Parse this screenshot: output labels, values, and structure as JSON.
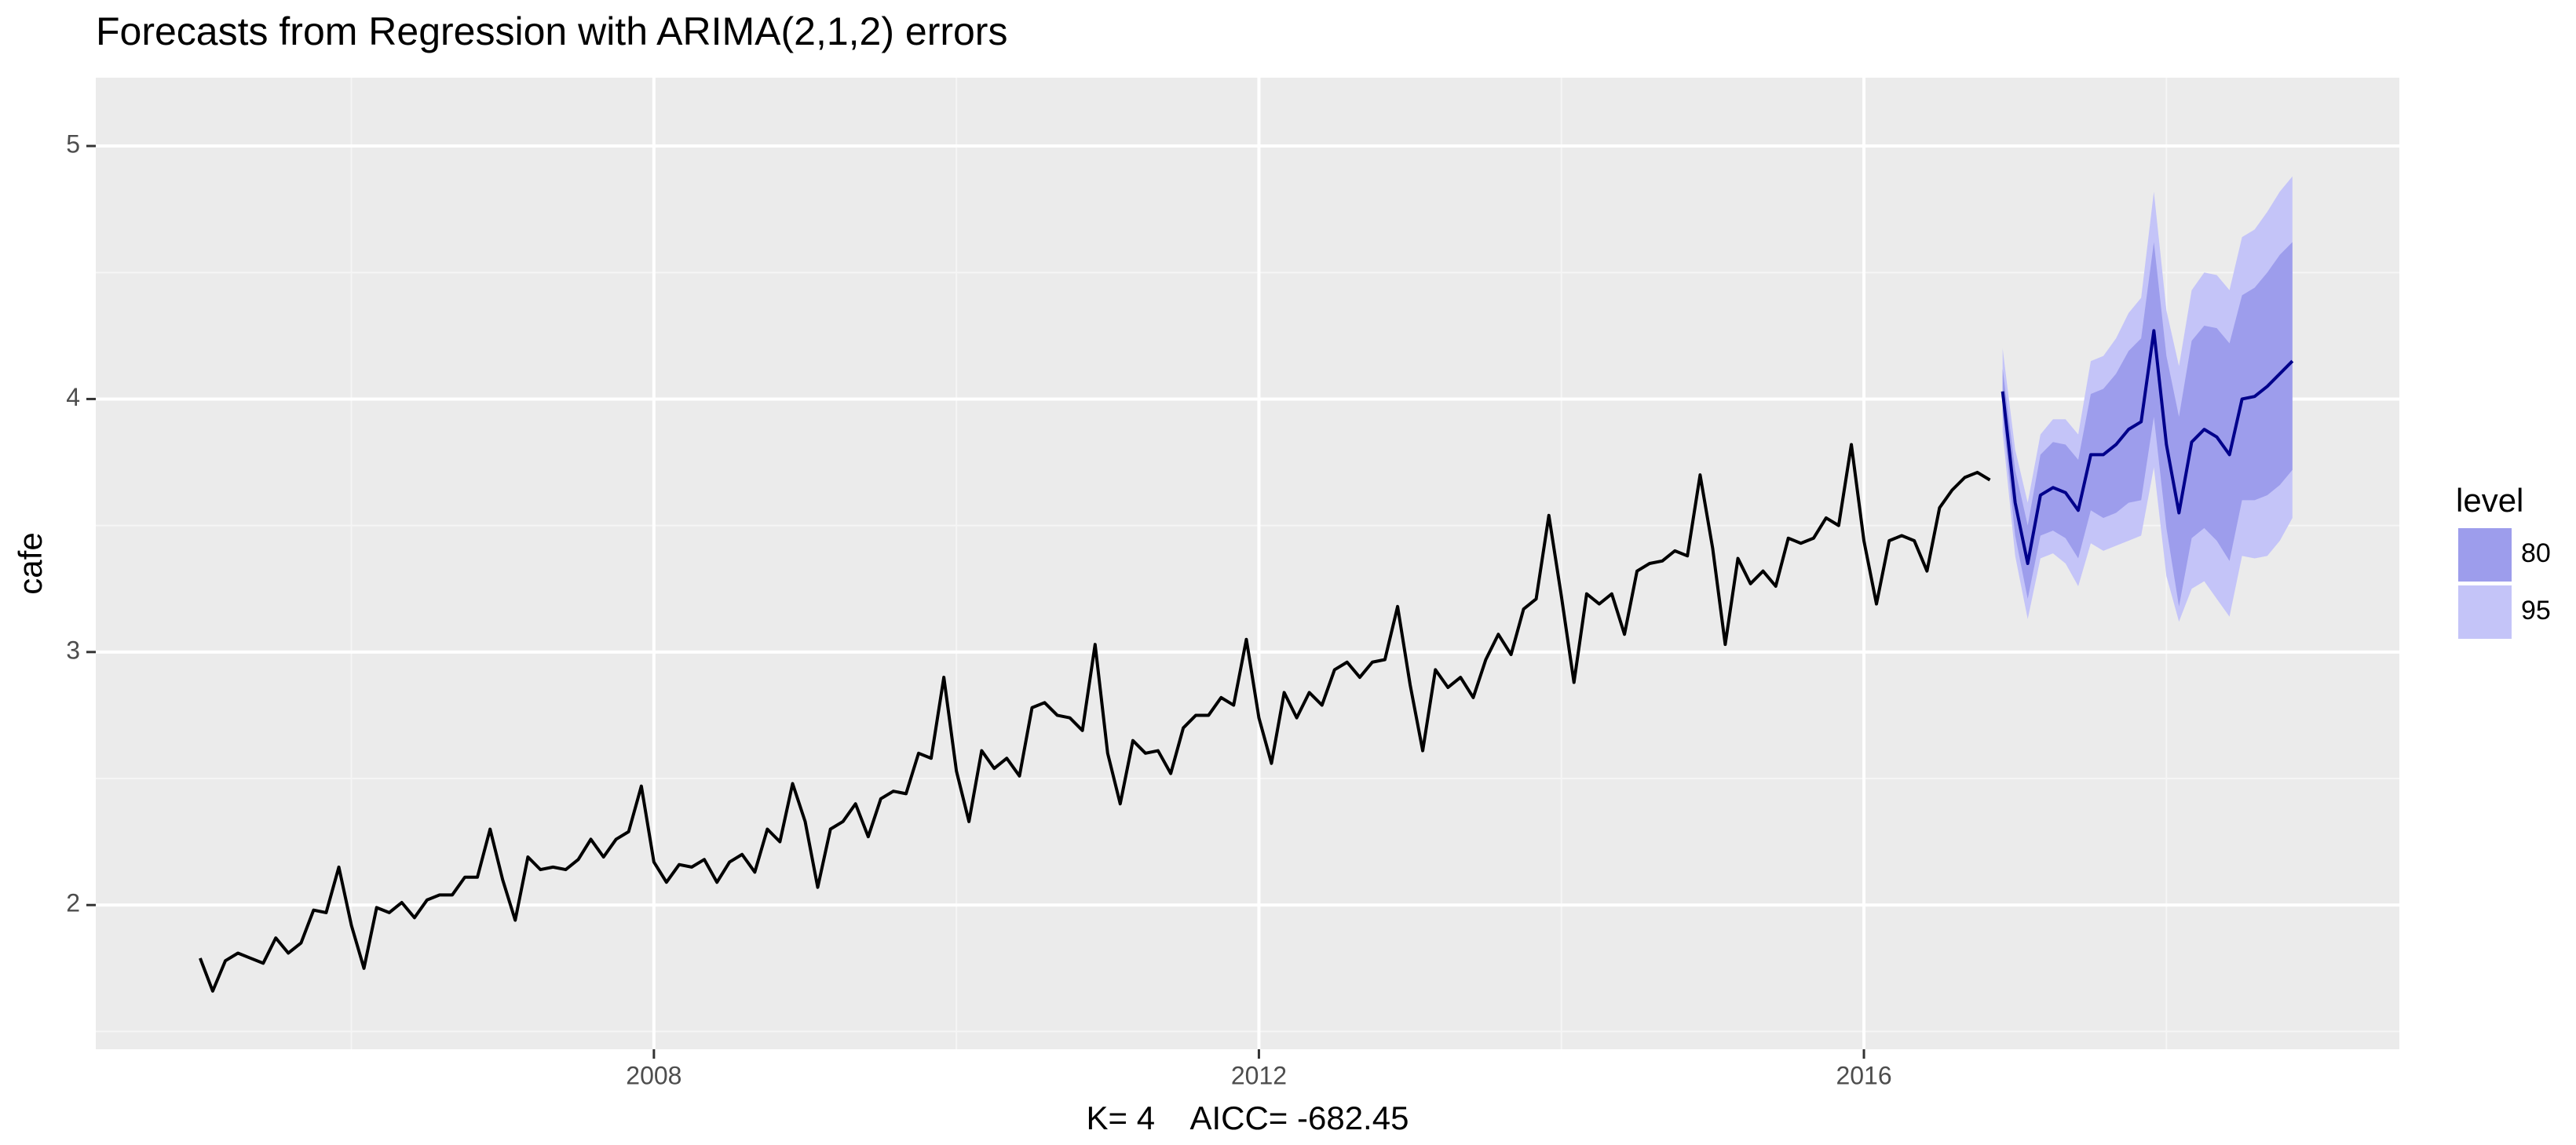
{
  "chart_data": {
    "type": "line",
    "title": "Forecasts from Regression with ARIMA(2,1,2) errors",
    "x_label": "K= 4    AICC= -682.45",
    "y_label": "cafe",
    "legend_title": "level",
    "grid": true,
    "xlim": [
      2004.31,
      2019.54
    ],
    "ylim": [
      1.43,
      5.27
    ],
    "xticks": [
      2008,
      2012,
      2016
    ],
    "yticks": [
      2,
      3,
      4,
      5
    ],
    "xminor": [
      2006,
      2010,
      2014,
      2018
    ],
    "yminor": [
      1.5,
      2.5,
      3.5,
      4.5
    ],
    "color": "#000000",
    "x": [
      2005,
      2005.083,
      2005.167,
      2005.25,
      2005.333,
      2005.417,
      2005.5,
      2005.583,
      2005.667,
      2005.75,
      2005.833,
      2005.917,
      2006,
      2006.083,
      2006.167,
      2006.25,
      2006.333,
      2006.417,
      2006.5,
      2006.583,
      2006.667,
      2006.75,
      2006.833,
      2006.917,
      2007,
      2007.083,
      2007.167,
      2007.25,
      2007.333,
      2007.417,
      2007.5,
      2007.583,
      2007.667,
      2007.75,
      2007.833,
      2007.917,
      2008,
      2008.083,
      2008.167,
      2008.25,
      2008.333,
      2008.417,
      2008.5,
      2008.583,
      2008.667,
      2008.75,
      2008.833,
      2008.917,
      2009,
      2009.083,
      2009.167,
      2009.25,
      2009.333,
      2009.417,
      2009.5,
      2009.583,
      2009.667,
      2009.75,
      2009.833,
      2009.917,
      2010,
      2010.083,
      2010.167,
      2010.25,
      2010.333,
      2010.417,
      2010.5,
      2010.583,
      2010.667,
      2010.75,
      2010.833,
      2010.917,
      2011,
      2011.083,
      2011.167,
      2011.25,
      2011.333,
      2011.417,
      2011.5,
      2011.583,
      2011.667,
      2011.75,
      2011.833,
      2011.917,
      2012,
      2012.083,
      2012.167,
      2012.25,
      2012.333,
      2012.417,
      2012.5,
      2012.583,
      2012.667,
      2012.75,
      2012.833,
      2012.917,
      2013,
      2013.083,
      2013.167,
      2013.25,
      2013.333,
      2013.417,
      2013.5,
      2013.583,
      2013.667,
      2013.75,
      2013.833,
      2013.917,
      2014,
      2014.083,
      2014.167,
      2014.25,
      2014.333,
      2014.417,
      2014.5,
      2014.583,
      2014.667,
      2014.75,
      2014.833,
      2014.917,
      2015,
      2015.083,
      2015.167,
      2015.25,
      2015.333,
      2015.417,
      2015.5,
      2015.583,
      2015.667,
      2015.75,
      2015.833,
      2015.917,
      2016,
      2016.083,
      2016.167,
      2016.25,
      2016.333,
      2016.417,
      2016.5,
      2016.583,
      2016.667,
      2016.75,
      2016.833
    ],
    "values": [
      1.79,
      1.66,
      1.78,
      1.81,
      1.79,
      1.77,
      1.87,
      1.81,
      1.85,
      1.98,
      1.97,
      2.15,
      1.92,
      1.75,
      1.99,
      1.97,
      2.01,
      1.95,
      2.02,
      2.04,
      2.04,
      2.11,
      2.11,
      2.3,
      2.1,
      1.94,
      2.19,
      2.14,
      2.15,
      2.14,
      2.18,
      2.26,
      2.19,
      2.26,
      2.29,
      2.47,
      2.17,
      2.09,
      2.16,
      2.15,
      2.18,
      2.09,
      2.17,
      2.2,
      2.13,
      2.3,
      2.25,
      2.48,
      2.33,
      2.07,
      2.3,
      2.33,
      2.4,
      2.27,
      2.42,
      2.45,
      2.44,
      2.6,
      2.58,
      2.9,
      2.53,
      2.33,
      2.61,
      2.54,
      2.58,
      2.51,
      2.78,
      2.8,
      2.75,
      2.74,
      2.69,
      3.03,
      2.6,
      2.4,
      2.65,
      2.6,
      2.61,
      2.52,
      2.7,
      2.75,
      2.75,
      2.82,
      2.79,
      3.05,
      2.74,
      2.56,
      2.84,
      2.74,
      2.84,
      2.79,
      2.93,
      2.96,
      2.9,
      2.96,
      2.97,
      3.18,
      2.87,
      2.61,
      2.93,
      2.86,
      2.9,
      2.82,
      2.97,
      3.07,
      2.99,
      3.17,
      3.21,
      3.54,
      3.22,
      2.88,
      3.23,
      3.19,
      3.23,
      3.07,
      3.32,
      3.35,
      3.36,
      3.4,
      3.38,
      3.7,
      3.41,
      3.03,
      3.37,
      3.27,
      3.32,
      3.26,
      3.45,
      3.43,
      3.45,
      3.53,
      3.5,
      3.82,
      3.44,
      3.19,
      3.44,
      3.46,
      3.44,
      3.32,
      3.57,
      3.64,
      3.69,
      3.71,
      3.68
    ],
    "forecast": {
      "color": "#00008b",
      "x": [
        2016.917,
        2017,
        2017.083,
        2017.167,
        2017.25,
        2017.333,
        2017.417,
        2017.5,
        2017.583,
        2017.667,
        2017.75,
        2017.833,
        2017.917,
        2018,
        2018.083,
        2018.167,
        2018.25,
        2018.333,
        2018.417,
        2018.5,
        2018.583,
        2018.667,
        2018.75,
        2018.833
      ],
      "values": [
        4.03,
        3.59,
        3.35,
        3.62,
        3.65,
        3.63,
        3.56,
        3.78,
        3.78,
        3.82,
        3.88,
        3.91,
        4.27,
        3.82,
        3.55,
        3.83,
        3.88,
        3.85,
        3.78,
        4.0,
        4.01,
        4.05,
        4.1,
        4.15
      ]
    },
    "bands": [
      {
        "name": "95",
        "color": "#c4c4f8",
        "lower": [
          3.87,
          3.38,
          3.13,
          3.37,
          3.39,
          3.35,
          3.26,
          3.43,
          3.4,
          3.42,
          3.44,
          3.46,
          3.73,
          3.3,
          3.12,
          3.25,
          3.28,
          3.21,
          3.14,
          3.38,
          3.37,
          3.38,
          3.44,
          3.53
        ],
        "upper": [
          4.2,
          3.8,
          3.59,
          3.86,
          3.92,
          3.92,
          3.86,
          4.15,
          4.17,
          4.24,
          4.34,
          4.4,
          4.82,
          4.35,
          4.13,
          4.43,
          4.5,
          4.49,
          4.43,
          4.64,
          4.67,
          4.74,
          4.82,
          4.88
        ]
      },
      {
        "name": "80",
        "color": "#9d9dec",
        "lower": [
          3.94,
          3.46,
          3.21,
          3.46,
          3.48,
          3.45,
          3.37,
          3.56,
          3.53,
          3.55,
          3.59,
          3.6,
          3.93,
          3.49,
          3.18,
          3.45,
          3.49,
          3.44,
          3.36,
          3.6,
          3.6,
          3.62,
          3.66,
          3.72
        ],
        "upper": [
          4.12,
          3.72,
          3.5,
          3.78,
          3.83,
          3.82,
          3.76,
          4.02,
          4.04,
          4.1,
          4.19,
          4.24,
          4.62,
          4.17,
          3.93,
          4.23,
          4.29,
          4.28,
          4.22,
          4.41,
          4.44,
          4.5,
          4.57,
          4.62
        ]
      }
    ]
  }
}
